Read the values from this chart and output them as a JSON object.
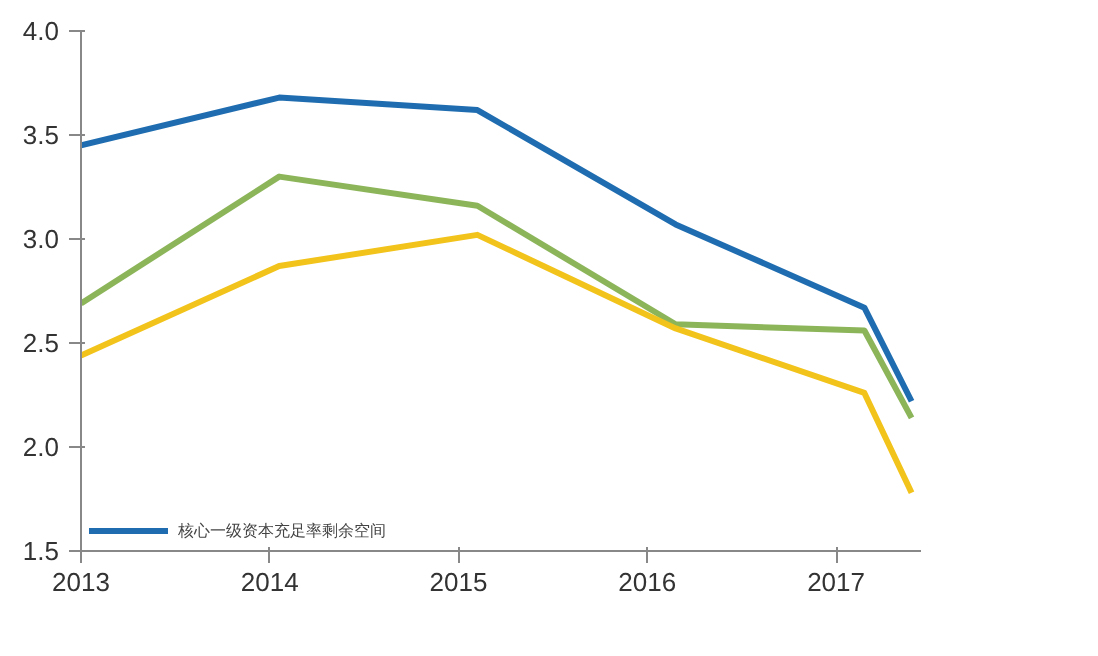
{
  "chart_data": {
    "type": "line",
    "x": [
      2013,
      2014.05,
      2015.1,
      2016.15,
      2017.15,
      2017.4
    ],
    "xlim": [
      2013,
      2017.45
    ],
    "xticks": [
      2013,
      2014,
      2015,
      2016,
      2017
    ],
    "ylim": [
      1.5,
      4.0
    ],
    "yticks": [
      {
        "value": 1.5,
        "label": "1.5"
      },
      {
        "value": 2.0,
        "label": "2.0"
      },
      {
        "value": 2.5,
        "label": "2.5"
      },
      {
        "value": 3.0,
        "label": "3.0"
      },
      {
        "value": 3.5,
        "label": "3.5"
      },
      {
        "value": 4.0,
        "label": "4.0"
      }
    ],
    "grid": false,
    "legend": "bottom left",
    "series": [
      {
        "name": "核心一级资本充足率剩余空间",
        "color": "#1f6db0",
        "values": [
          3.45,
          3.68,
          3.62,
          3.07,
          2.67,
          2.22
        ]
      },
      {
        "color": "#8cb55a",
        "values": [
          2.69,
          3.3,
          3.16,
          2.59,
          2.56,
          2.14
        ]
      },
      {
        "color": "#f2c31b",
        "values": [
          2.44,
          2.87,
          3.02,
          2.57,
          2.26,
          1.78
        ]
      }
    ]
  }
}
